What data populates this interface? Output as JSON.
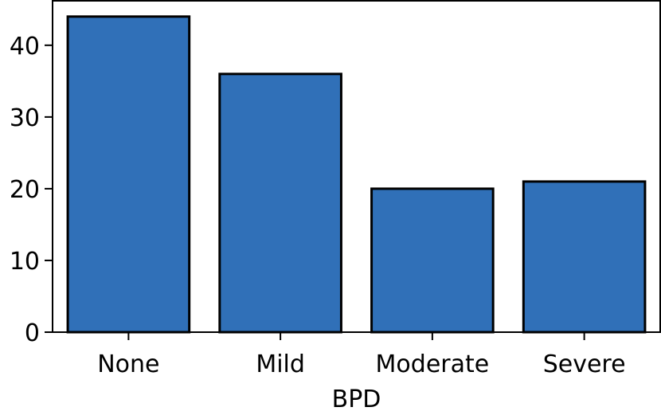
{
  "chart_data": {
    "type": "bar",
    "title": "",
    "xlabel": "BPD",
    "ylabel": "",
    "categories": [
      "None",
      "Mild",
      "Moderate",
      "Severe"
    ],
    "values": [
      44,
      36,
      20,
      21
    ],
    "ylim": [
      0,
      46.2
    ],
    "yticks": [
      0,
      10,
      20,
      30,
      40
    ],
    "grid": false,
    "bar_color": "#3070b8",
    "edge_color": "#000000"
  }
}
